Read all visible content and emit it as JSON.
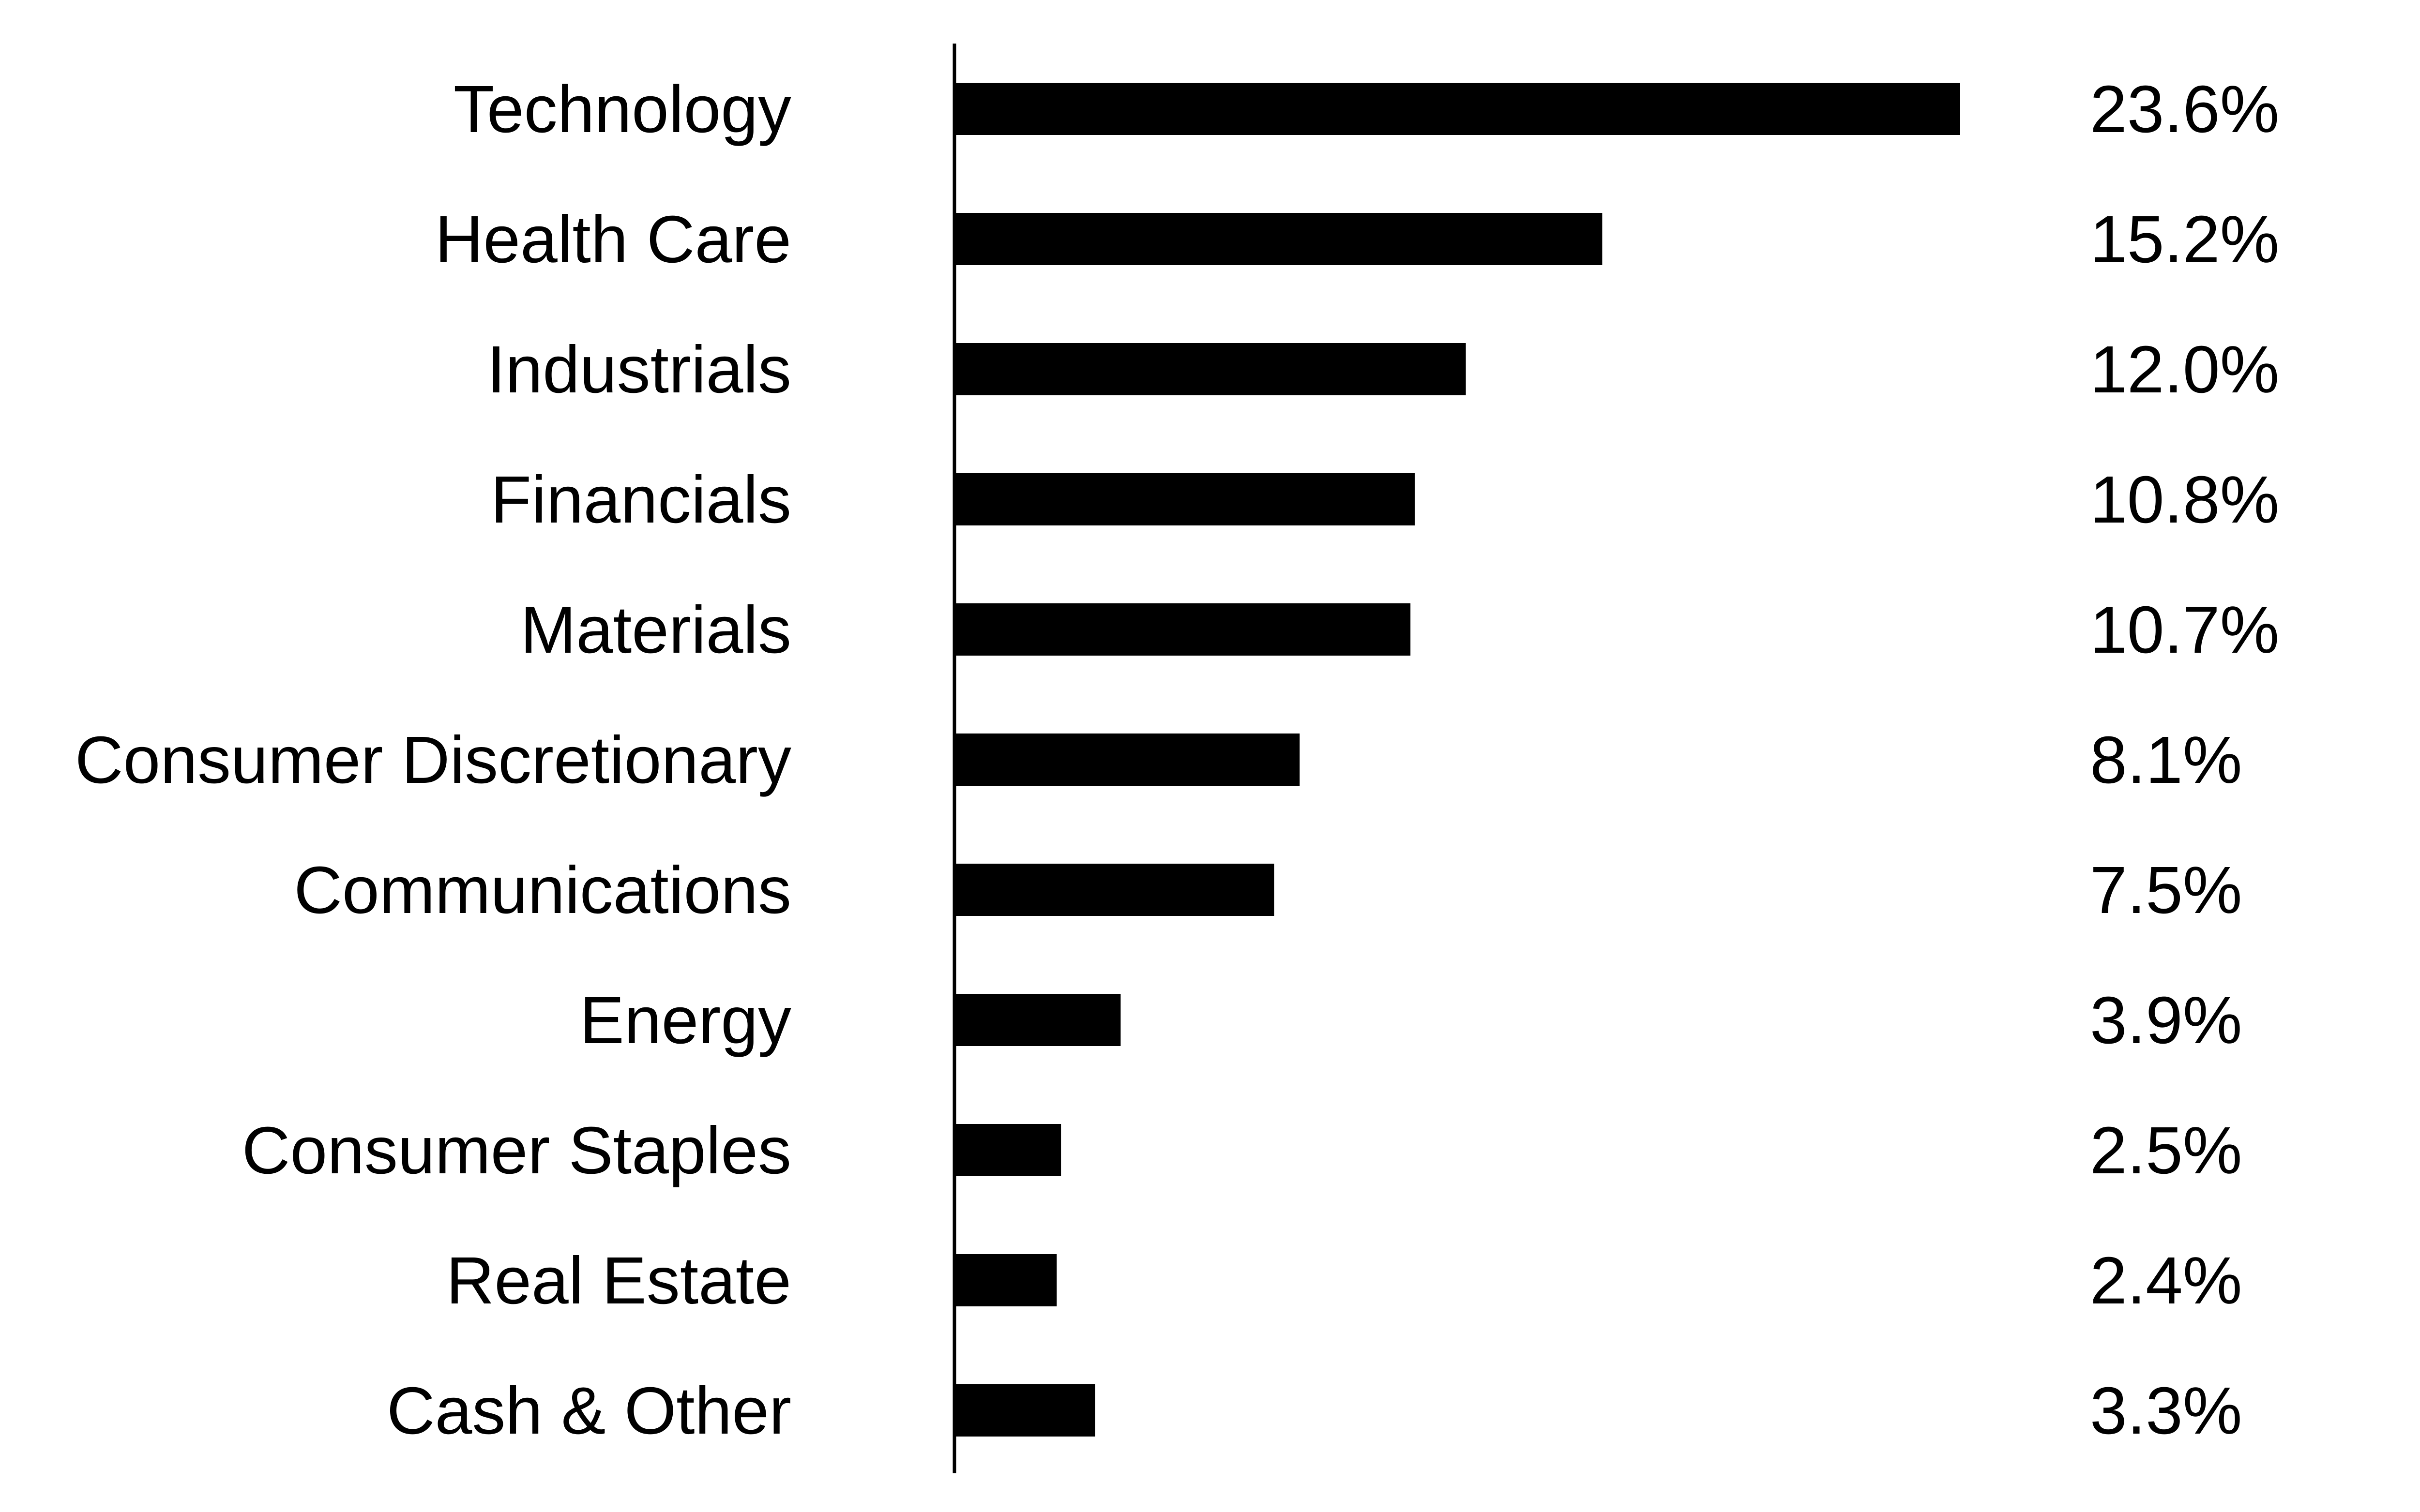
{
  "chart_data": {
    "type": "bar",
    "orientation": "horizontal",
    "categories": [
      "Technology",
      "Health Care",
      "Industrials",
      "Financials",
      "Materials",
      "Consumer Discretionary",
      "Communications",
      "Energy",
      "Consumer Staples",
      "Real Estate",
      "Cash & Other"
    ],
    "values": [
      23.6,
      15.2,
      12.0,
      10.8,
      10.7,
      8.1,
      7.5,
      3.9,
      2.5,
      2.4,
      3.3
    ],
    "value_labels": [
      "23.6%",
      "15.2%",
      "12.0%",
      "10.8%",
      "10.7%",
      "8.1%",
      "7.5%",
      "3.9%",
      "2.5%",
      "2.4%",
      "3.3%"
    ],
    "title": "",
    "xlabel": "",
    "ylabel": "",
    "xlim": [
      0,
      23.6
    ],
    "grid": false,
    "legend": "none",
    "colors": {
      "bar": "#000000",
      "axis": "#000000",
      "text": "#000000",
      "background": "#ffffff"
    }
  }
}
